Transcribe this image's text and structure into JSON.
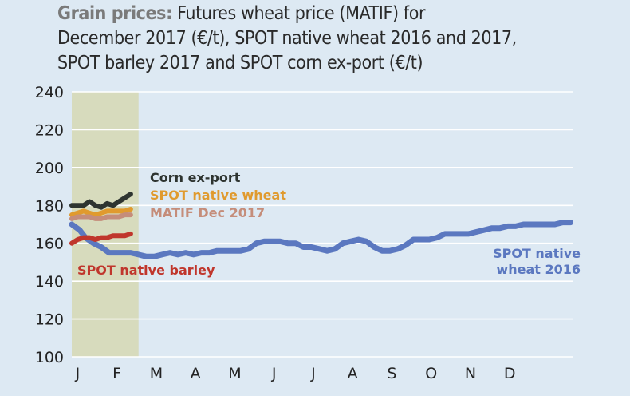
{
  "title": {
    "lead": "Grain prices:",
    "lines": [
      "Futures wheat price (MATIF) for",
      "December 2017 (€/t), SPOT native wheat 2016 and 2017,",
      "SPOT barley 2017 and SPOT corn ex-port (€/t)"
    ]
  },
  "chart_data": {
    "type": "line",
    "title": "Grain prices: Futures wheat price (MATIF) for December 2017 (€/t), SPOT native wheat 2016 and 2017, SPOT barley 2017 and SPOT corn ex-port (€/t)",
    "ylim": [
      100,
      240
    ],
    "yticks": [
      100,
      120,
      140,
      160,
      180,
      200,
      220,
      240
    ],
    "xlim": [
      0,
      12.75
    ],
    "xticks": [
      "J",
      "F",
      "M",
      "A",
      "M",
      "J",
      "J",
      "A",
      "S",
      "O",
      "N",
      "D"
    ],
    "highlight_range": [
      0,
      1.7
    ],
    "highlight_color": "#d7dbbd",
    "grid": true,
    "series": [
      {
        "name": "SPOT native wheat 2016",
        "label_lines": [
          "SPOT native",
          "wheat 2016"
        ],
        "color": "#5b78c0",
        "x": [
          0,
          0.2,
          0.35,
          0.55,
          0.75,
          0.95,
          1.1,
          1.3,
          1.5,
          1.7,
          1.9,
          2.1,
          2.3,
          2.5,
          2.7,
          2.9,
          3.1,
          3.3,
          3.5,
          3.7,
          3.9,
          4.1,
          4.3,
          4.5,
          4.7,
          4.9,
          5.1,
          5.3,
          5.5,
          5.7,
          5.9,
          6.1,
          6.3,
          6.5,
          6.7,
          6.9,
          7.1,
          7.3,
          7.5,
          7.7,
          7.9,
          8.1,
          8.3,
          8.5,
          8.7,
          8.9,
          9.1,
          9.3,
          9.5,
          9.7,
          9.9,
          10.1,
          10.3,
          10.5,
          10.7,
          10.9,
          11.1,
          11.3,
          11.5,
          11.7,
          11.9,
          12.1,
          12.3,
          12.5,
          12.7
        ],
        "values": [
          170,
          167,
          163,
          160,
          158,
          155,
          155,
          155,
          155,
          154,
          153,
          153,
          154,
          155,
          154,
          155,
          154,
          155,
          155,
          156,
          156,
          156,
          156,
          157,
          160,
          161,
          161,
          161,
          160,
          160,
          158,
          158,
          157,
          156,
          157,
          160,
          161,
          162,
          161,
          158,
          156,
          156,
          157,
          159,
          162,
          162,
          162,
          163,
          165,
          165,
          165,
          165,
          166,
          167,
          168,
          168,
          169,
          169,
          170,
          170,
          170,
          170,
          170,
          171,
          171
        ]
      },
      {
        "name": "Corn ex-port",
        "label_lines": [
          "Corn ex-port"
        ],
        "color": "#2e3430",
        "x": [
          0,
          0.15,
          0.3,
          0.45,
          0.6,
          0.75,
          0.9,
          1.05,
          1.2,
          1.35,
          1.5
        ],
        "values": [
          180,
          180,
          180,
          182,
          180,
          179,
          181,
          180,
          182,
          184,
          186
        ]
      },
      {
        "name": "SPOT native wheat",
        "label_lines": [
          "SPOT native wheat"
        ],
        "color": "#e09a2e",
        "x": [
          0,
          0.15,
          0.3,
          0.45,
          0.6,
          0.75,
          0.9,
          1.05,
          1.2,
          1.35,
          1.5
        ],
        "values": [
          175,
          176,
          177,
          176,
          175,
          176,
          177,
          177,
          177,
          177,
          178
        ]
      },
      {
        "name": "MATIF Dec 2017",
        "label_lines": [
          "MATIF Dec 2017"
        ],
        "color": "#c58d7a",
        "x": [
          0,
          0.15,
          0.3,
          0.45,
          0.6,
          0.75,
          0.9,
          1.05,
          1.2,
          1.35,
          1.5
        ],
        "values": [
          173,
          174,
          174,
          174,
          173,
          173,
          174,
          174,
          174,
          175,
          175
        ]
      },
      {
        "name": "SPOT native barley",
        "label_lines": [
          "SPOT native barley"
        ],
        "color": "#c0362c",
        "x": [
          0,
          0.15,
          0.3,
          0.45,
          0.6,
          0.75,
          0.9,
          1.05,
          1.2,
          1.35,
          1.5
        ],
        "values": [
          160,
          162,
          163,
          163,
          162,
          163,
          163,
          164,
          164,
          164,
          165
        ]
      }
    ]
  }
}
